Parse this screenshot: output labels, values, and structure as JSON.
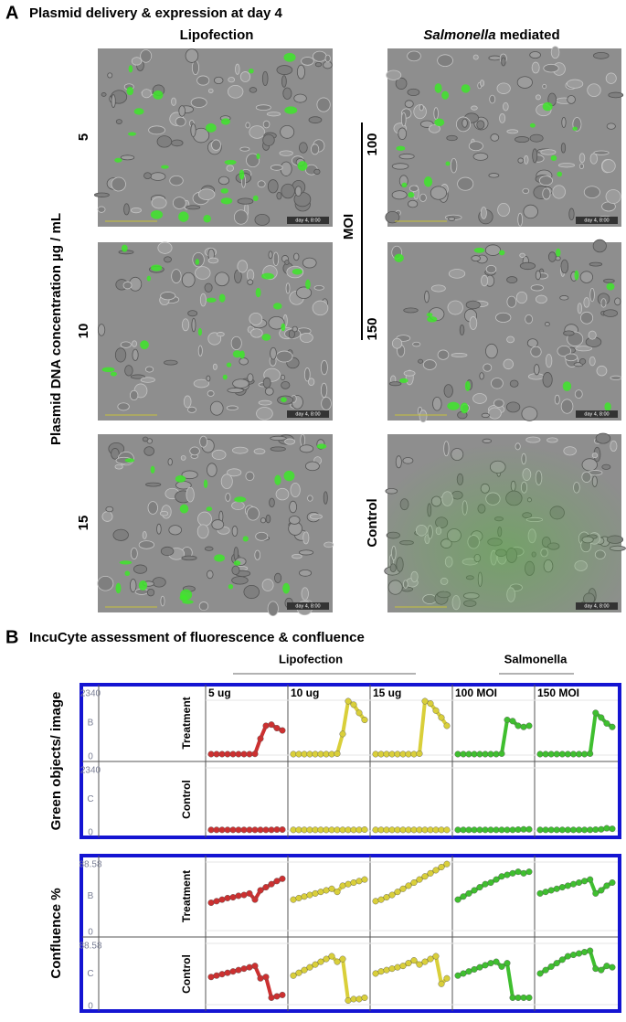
{
  "panel_a": {
    "label": "A",
    "title": "Plasmid delivery & expression at day 4",
    "left_title": "Lipofection",
    "right_title_italic": "Salmonella",
    "right_title_rest": "mediated",
    "y_label": "Plasmid DNA concentration µg / mL",
    "row_labels": [
      "5",
      "10",
      "15"
    ],
    "moi_label": "MOI",
    "moi_rows": [
      "100",
      "150"
    ],
    "control_label": "Control",
    "timestamp": "day 4, 8:00"
  },
  "panel_b": {
    "label": "B",
    "title": "IncuCyte assessment of fluorescence & confluence",
    "groups": [
      "Lipofection",
      "Salmonella"
    ],
    "conditions": [
      "5 ug",
      "10 ug",
      "15 ug",
      "100 MOI",
      "150 MOI"
    ],
    "colors": [
      "#cc3030",
      "#d9cf3a",
      "#d9cf3a",
      "#3fbf2f",
      "#3fbf2f"
    ],
    "row_labels": [
      "Treatment",
      "Control"
    ],
    "row_codes": [
      "B",
      "C"
    ],
    "charts": [
      {
        "y_label": "Green objects/ image",
        "ylim": [
          0,
          2340
        ],
        "yticks": [
          0,
          2340
        ],
        "values": [
          [
            [
              40,
              40,
              40,
              40,
              40,
              40,
              40,
              40,
              50,
              700,
              1250,
              1300,
              1150,
              1050
            ],
            [
              40,
              40,
              40,
              40,
              40,
              40,
              40,
              40,
              60,
              900,
              2300,
              2150,
              1800,
              1500
            ],
            [
              40,
              40,
              40,
              40,
              40,
              40,
              40,
              40,
              60,
              2300,
              2200,
              1900,
              1600,
              1250
            ],
            [
              40,
              40,
              40,
              40,
              40,
              40,
              40,
              40,
              60,
              1500,
              1450,
              1250,
              1200,
              1250
            ],
            [
              40,
              40,
              40,
              40,
              40,
              40,
              40,
              40,
              40,
              60,
              1800,
              1600,
              1350,
              1200
            ]
          ],
          [
            [
              40,
              40,
              40,
              40,
              40,
              40,
              40,
              40,
              40,
              40,
              40,
              40,
              50,
              50
            ],
            [
              40,
              40,
              40,
              40,
              40,
              40,
              40,
              40,
              40,
              40,
              40,
              40,
              40,
              50
            ],
            [
              40,
              40,
              40,
              40,
              40,
              40,
              40,
              40,
              40,
              40,
              40,
              40,
              40,
              40
            ],
            [
              40,
              40,
              40,
              40,
              40,
              40,
              40,
              40,
              40,
              40,
              40,
              50,
              60,
              60
            ],
            [
              40,
              40,
              40,
              40,
              40,
              40,
              40,
              40,
              40,
              40,
              50,
              60,
              100,
              80
            ]
          ]
        ]
      },
      {
        "y_label": "Confluence %",
        "ylim": [
          0,
          88.58
        ],
        "yticks": [
          0,
          88.58
        ],
        "values": [
          [
            [
              36,
              38,
              40,
              42,
              43,
              45,
              46,
              48,
              40,
              52,
              56,
              60,
              64,
              67
            ],
            [
              40,
              42,
              44,
              46,
              48,
              50,
              52,
              54,
              50,
              58,
              60,
              62,
              64,
              66
            ],
            [
              38,
              40,
              43,
              46,
              50,
              54,
              58,
              62,
              66,
              70,
              74,
              78,
              82,
              86
            ],
            [
              40,
              44,
              48,
              52,
              56,
              60,
              62,
              66,
              70,
              72,
              74,
              76,
              74,
              76
            ],
            [
              48,
              50,
              52,
              54,
              56,
              58,
              60,
              62,
              64,
              66,
              48,
              52,
              58,
              62
            ]
          ],
          [
            [
              40,
              42,
              44,
              46,
              48,
              50,
              52,
              54,
              56,
              38,
              40,
              10,
              12,
              14
            ],
            [
              42,
              46,
              50,
              54,
              58,
              62,
              66,
              70,
              62,
              66,
              6,
              8,
              8,
              10
            ],
            [
              45,
              48,
              50,
              52,
              54,
              56,
              60,
              64,
              58,
              62,
              66,
              70,
              30,
              38
            ],
            [
              42,
              45,
              48,
              51,
              54,
              57,
              60,
              62,
              55,
              60,
              10,
              10,
              10,
              10
            ],
            [
              45,
              50,
              55,
              60,
              65,
              70,
              72,
              74,
              76,
              78,
              52,
              50,
              56,
              54
            ]
          ]
        ]
      }
    ]
  }
}
